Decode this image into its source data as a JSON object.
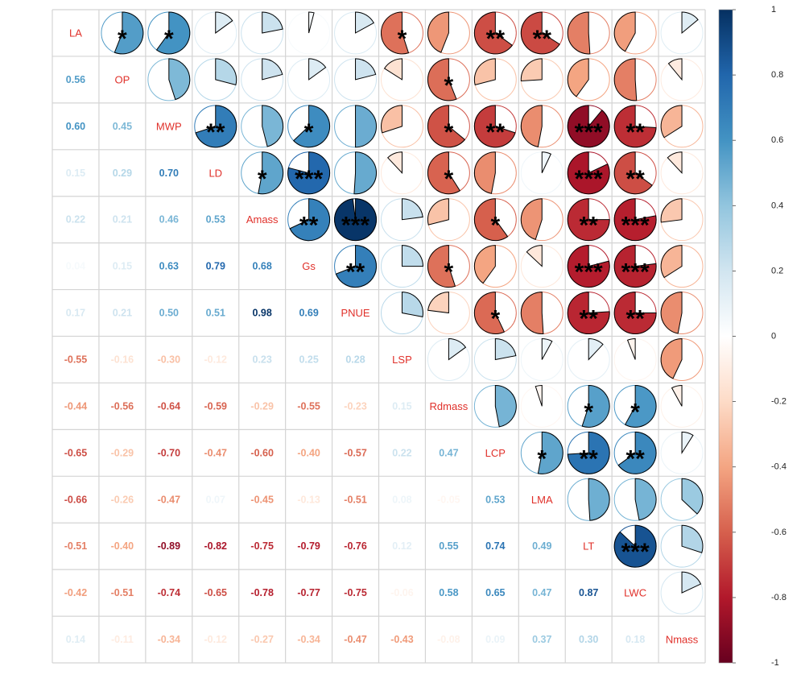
{
  "chart_data": {
    "type": "heatmap",
    "subtype": "correlation-matrix (upper: pie with significance stars, lower: coefficients)",
    "variables": [
      "LA",
      "OP",
      "MWP",
      "LD",
      "Amass",
      "Gs",
      "PNUE",
      "LSP",
      "Rdmass",
      "LCP",
      "LMA",
      "LT",
      "LWC",
      "Nmass"
    ],
    "lower": [
      [],
      [
        0.56
      ],
      [
        0.6,
        0.45
      ],
      [
        0.15,
        0.29,
        0.7
      ],
      [
        0.22,
        0.21,
        0.46,
        0.53
      ],
      [
        0.04,
        0.15,
        0.63,
        0.79,
        0.68
      ],
      [
        0.17,
        0.21,
        0.5,
        0.51,
        0.98,
        0.69
      ],
      [
        -0.55,
        -0.16,
        -0.3,
        -0.12,
        0.23,
        0.25,
        0.28
      ],
      [
        -0.44,
        -0.56,
        -0.64,
        -0.59,
        -0.29,
        -0.55,
        -0.23,
        0.15
      ],
      [
        -0.65,
        -0.29,
        -0.7,
        -0.47,
        -0.6,
        -0.4,
        -0.57,
        0.22,
        0.47
      ],
      [
        -0.66,
        -0.26,
        -0.47,
        0.07,
        -0.45,
        -0.13,
        -0.51,
        0.08,
        -0.05,
        0.53
      ],
      [
        -0.51,
        -0.4,
        -0.89,
        -0.82,
        -0.75,
        -0.79,
        -0.76,
        0.12,
        0.55,
        0.74,
        0.49
      ],
      [
        -0.42,
        -0.51,
        -0.74,
        -0.65,
        -0.78,
        -0.77,
        -0.75,
        -0.06,
        0.58,
        0.65,
        0.47,
        0.87
      ],
      [
        0.14,
        -0.11,
        -0.34,
        -0.12,
        -0.27,
        -0.34,
        -0.47,
        -0.43,
        -0.08,
        0.09,
        0.37,
        0.3,
        0.18
      ]
    ],
    "significance": [
      [
        "",
        "*",
        "*",
        "",
        "",
        "",
        "",
        "*",
        "",
        "**",
        "**",
        "",
        "",
        ""
      ],
      [
        "",
        "",
        "",
        "",
        "",
        "",
        "",
        "",
        "*",
        "",
        "",
        "",
        "",
        ""
      ],
      [
        "",
        "",
        "",
        "**",
        "",
        "*",
        "",
        "",
        "*",
        "**",
        "",
        "***",
        "**",
        ""
      ],
      [
        "",
        "",
        "",
        "",
        "*",
        "***",
        "",
        "",
        "*",
        "",
        "",
        "***",
        "**",
        ""
      ],
      [
        "",
        "",
        "",
        "",
        "",
        "**",
        "***",
        "",
        "",
        "*",
        "",
        "**",
        "***",
        ""
      ],
      [
        "",
        "",
        "",
        "",
        "",
        "",
        "**",
        "",
        "*",
        "",
        "",
        "***",
        "***",
        ""
      ],
      [
        "",
        "",
        "",
        "",
        "",
        "",
        "",
        "",
        "",
        "*",
        "",
        "**",
        "**",
        ""
      ],
      [
        "",
        "",
        "",
        "",
        "",
        "",
        "",
        "",
        "",
        "",
        "",
        "",
        "",
        ""
      ],
      [
        "",
        "",
        "",
        "",
        "",
        "",
        "",
        "",
        "",
        "",
        "",
        "*",
        "*",
        ""
      ],
      [
        "",
        "",
        "",
        "",
        "",
        "",
        "",
        "",
        "",
        "",
        "*",
        "**",
        "**",
        ""
      ],
      [
        "",
        "",
        "",
        "",
        "",
        "",
        "",
        "",
        "",
        "",
        "",
        "",
        "",
        ""
      ],
      [
        "",
        "",
        "",
        "",
        "",
        "",
        "",
        "",
        "",
        "",
        "",
        "",
        "***",
        ""
      ],
      [
        "",
        "",
        "",
        "",
        "",
        "",
        "",
        "",
        "",
        "",
        "",
        "",
        "",
        ""
      ],
      [
        "",
        "",
        "",
        "",
        "",
        "",
        "",
        "",
        "",
        "",
        "",
        "",
        "",
        ""
      ]
    ],
    "colorbar": {
      "range": [
        -1,
        1
      ],
      "ticks": [
        "1",
        "0.8",
        "0.6",
        "0.4",
        "0.2",
        "0",
        "-0.2",
        "-0.4",
        "-0.6",
        "-0.8",
        "-1"
      ]
    },
    "colormap": [
      "#67001F",
      "#B2182B",
      "#D6604D",
      "#F4A582",
      "#FDDBC7",
      "#FFFFFF",
      "#D1E5F0",
      "#92C5DE",
      "#4393C3",
      "#2166AC",
      "#053061"
    ],
    "label_color": "#e0302a"
  }
}
